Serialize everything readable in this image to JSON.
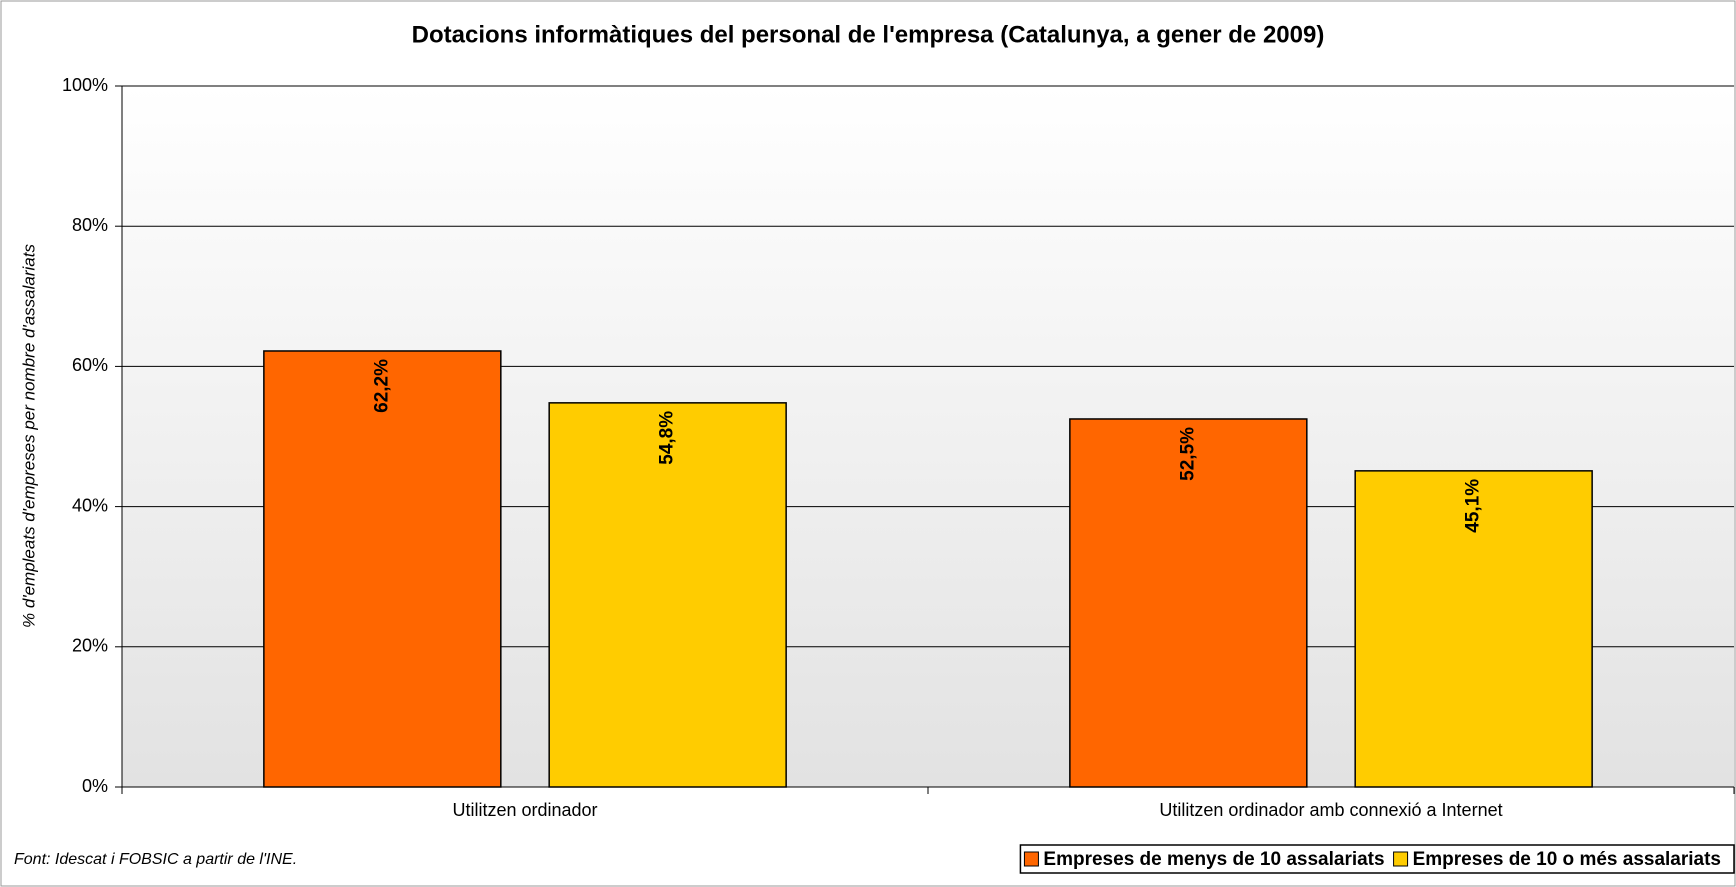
{
  "chart_data": {
    "type": "bar",
    "title": "Dotacions informàtiques del personal de l'empresa (Catalunya, a gener de 2009)",
    "y_label": "% d'empleats d'empreses per nombre d'assalariats",
    "source": "Font: Idescat i FOBSIC a partir de l'INE.",
    "categories": [
      "Utilitzen ordinador",
      "Utilitzen ordinador amb connexió a Internet"
    ],
    "series": [
      {
        "name": "Empreses de menys de 10 assalariats",
        "color": "#ff6600",
        "values": [
          62.2,
          52.5
        ],
        "value_labels": [
          "62,2%",
          "52,5%"
        ]
      },
      {
        "name": "Empreses de 10 o més assalariats",
        "color": "#ffcc00",
        "values": [
          54.8,
          45.1
        ],
        "value_labels": [
          "54,8%",
          "45,1%"
        ]
      }
    ],
    "ylim": [
      0,
      100
    ],
    "yticks": [
      {
        "value": 0,
        "label": "0%"
      },
      {
        "value": 20,
        "label": "20%"
      },
      {
        "value": 40,
        "label": "40%"
      },
      {
        "value": 60,
        "label": "60%"
      },
      {
        "value": 80,
        "label": "80%"
      },
      {
        "value": 100,
        "label": "100%"
      }
    ],
    "grid": true,
    "legend": "bottom-right"
  }
}
